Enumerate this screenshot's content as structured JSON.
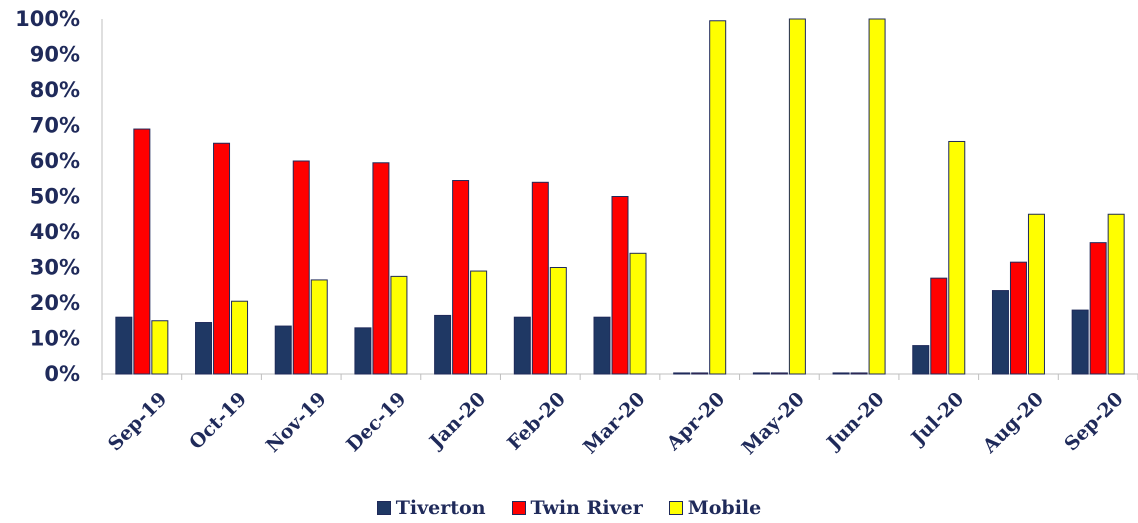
{
  "chart_data": {
    "type": "bar",
    "categories": [
      "Sep-19",
      "Oct-19",
      "Nov-19",
      "Dec-19",
      "Jan-20",
      "Feb-20",
      "Mar-20",
      "Apr-20",
      "May-20",
      "Jun-20",
      "Jul-20",
      "Aug-20",
      "Sep-20"
    ],
    "series": [
      {
        "name": "Tiverton",
        "color": "#1f3864",
        "values": [
          16,
          14.5,
          13.5,
          13,
          16.5,
          16,
          16,
          0.3,
          0.3,
          0.3,
          8,
          23.5,
          18
        ]
      },
      {
        "name": "Twin River",
        "color": "#ff0000",
        "values": [
          69,
          65,
          60,
          59.5,
          54.5,
          54,
          50,
          0.3,
          0.3,
          0.3,
          27,
          31.5,
          37
        ]
      },
      {
        "name": "Mobile",
        "color": "#ffff00",
        "values": [
          15,
          20.5,
          26.5,
          27.5,
          29,
          30,
          34,
          99.5,
          100,
          100,
          65.5,
          45,
          45
        ]
      }
    ],
    "ylim": [
      0,
      100
    ],
    "yticks": [
      "0%",
      "10%",
      "20%",
      "30%",
      "40%",
      "50%",
      "60%",
      "70%",
      "80%",
      "90%",
      "100%"
    ],
    "grid": false,
    "legend_position": "bottom",
    "title": "",
    "xlabel": "",
    "ylabel": ""
  }
}
